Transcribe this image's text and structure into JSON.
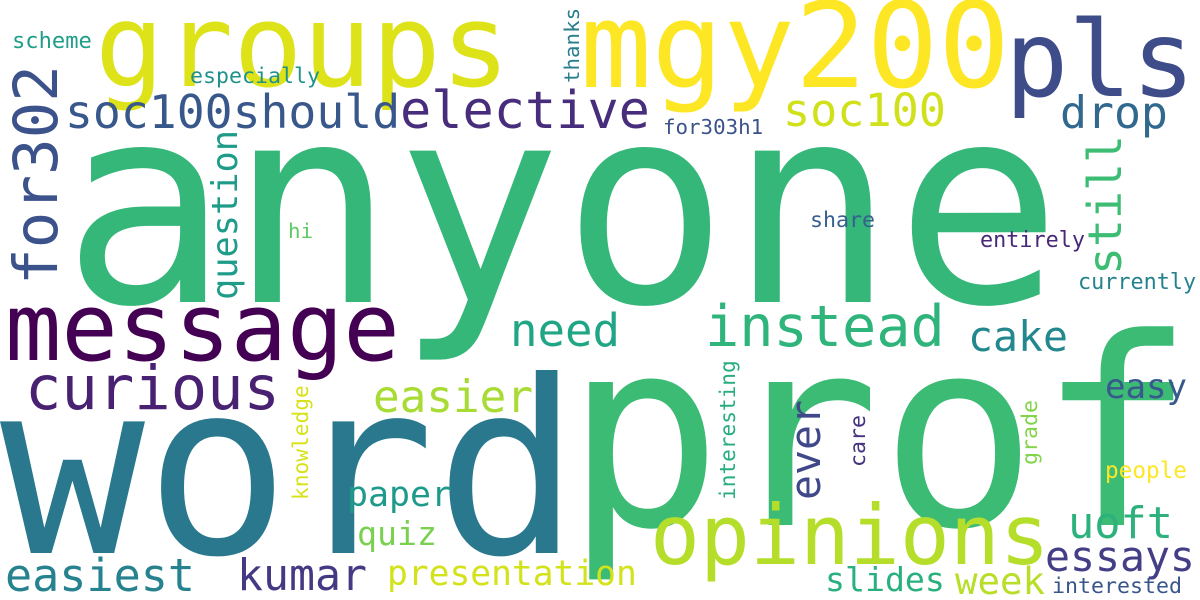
{
  "words": [
    {
      "text": "anyone",
      "color": "#35b779"
    },
    {
      "text": "prof",
      "color": "#3cbb75"
    },
    {
      "text": "word",
      "color": "#2a788e"
    },
    {
      "text": "message",
      "color": "#440154"
    },
    {
      "text": "groups",
      "color": "#dde318"
    },
    {
      "text": "mgy200",
      "color": "#fde725"
    },
    {
      "text": "pls",
      "color": "#3e4c8a"
    },
    {
      "text": "opinions",
      "color": "#b5de2b"
    },
    {
      "text": "instead",
      "color": "#2fb47c"
    },
    {
      "text": "curious",
      "color": "#482173"
    },
    {
      "text": "elective",
      "color": "#472d7b"
    },
    {
      "text": "soc100should",
      "color": "#38588c"
    },
    {
      "text": "for302",
      "color": "#3b528b"
    },
    {
      "text": "soc100",
      "color": "#d0e11c"
    },
    {
      "text": "drop",
      "color": "#31688e"
    },
    {
      "text": "need",
      "color": "#21a685"
    },
    {
      "text": "easier",
      "color": "#a8db34"
    },
    {
      "text": "cake",
      "color": "#23888e"
    },
    {
      "text": "still",
      "color": "#3dbc74"
    },
    {
      "text": "easiest",
      "color": "#26828e"
    },
    {
      "text": "kumar",
      "color": "#443983"
    },
    {
      "text": "presentation",
      "color": "#d2e21b"
    },
    {
      "text": "quiz",
      "color": "#7ad151"
    },
    {
      "text": "paper",
      "color": "#1f9a8a"
    },
    {
      "text": "ever",
      "color": "#3f4889"
    },
    {
      "text": "uoft",
      "color": "#2db27d"
    },
    {
      "text": "essays",
      "color": "#433e85"
    },
    {
      "text": "easy",
      "color": "#38598c"
    },
    {
      "text": "slides",
      "color": "#2ab07f"
    },
    {
      "text": "week",
      "color": "#b8de29"
    },
    {
      "text": "question",
      "color": "#1e9c89"
    },
    {
      "text": "scheme",
      "color": "#1f9e89"
    },
    {
      "text": "especially",
      "color": "#20928c"
    },
    {
      "text": "thanks",
      "color": "#287d8e"
    },
    {
      "text": "for303h1",
      "color": "#3b528b"
    },
    {
      "text": "share",
      "color": "#355f8d"
    },
    {
      "text": "hi",
      "color": "#5ec962"
    },
    {
      "text": "entirely",
      "color": "#482878"
    },
    {
      "text": "currently",
      "color": "#26828e"
    },
    {
      "text": "knowledge",
      "color": "#d8e219"
    },
    {
      "text": "interesting",
      "color": "#27ad81"
    },
    {
      "text": "care",
      "color": "#46327e"
    },
    {
      "text": "grade",
      "color": "#84d44b"
    },
    {
      "text": "people",
      "color": "#fde725"
    },
    {
      "text": "interested",
      "color": "#39568c"
    }
  ]
}
